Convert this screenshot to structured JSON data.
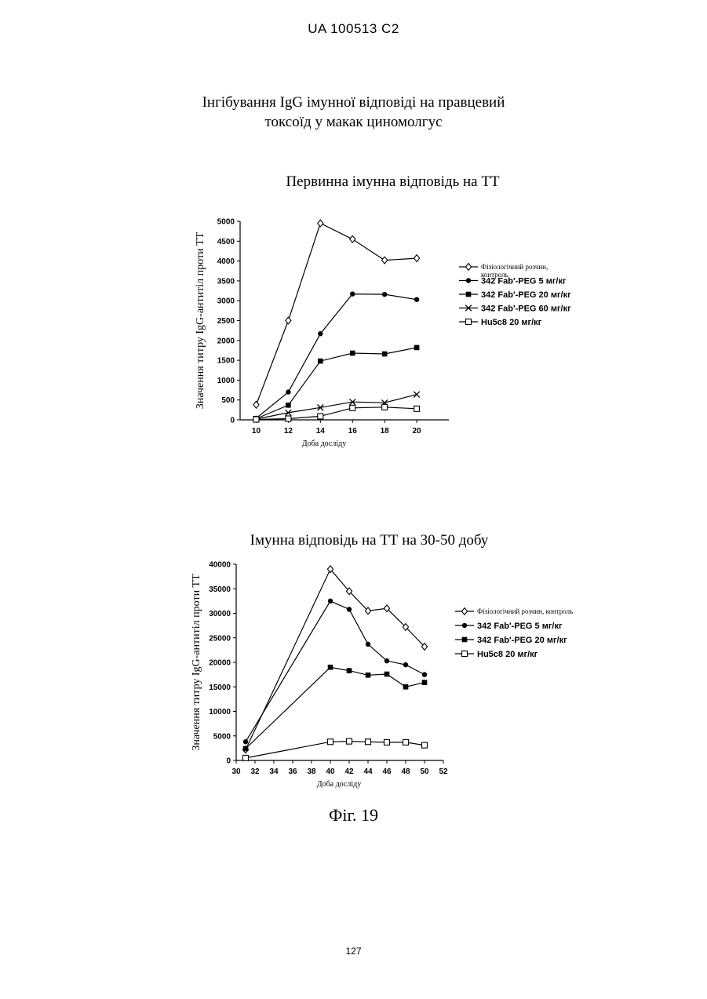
{
  "header": "UA   100513   C2",
  "title_line1": "Інгібування IgG імунної відповіді на правцевий",
  "title_line2": "токсоїд у макак циномолгус",
  "page_number": "127",
  "figure_label": "Фіг. 19",
  "chart_data": [
    {
      "type": "line",
      "title": "Первинна імунна відповідь на ТТ",
      "xlabel": "Доба досліду",
      "ylabel": "Значення титру IgG-антитіл проти ТТ",
      "x_ticks": [
        10,
        12,
        14,
        16,
        18,
        20
      ],
      "y_ticks": [
        0,
        500,
        1000,
        1500,
        2000,
        2500,
        3000,
        3500,
        4000,
        4500,
        5000
      ],
      "xlim": [
        9,
        22
      ],
      "ylim": [
        0,
        5000
      ],
      "grid": false,
      "legend_position": "right",
      "series": [
        {
          "name": "Фізіологічний розчин, контроль",
          "marker": "diamond-open",
          "x": [
            10,
            12,
            14,
            16,
            18,
            20
          ],
          "y": [
            380,
            2500,
            4950,
            4550,
            4020,
            4070
          ]
        },
        {
          "name": "342 Fab'-PEG 5 мг/кг",
          "marker": "circle-filled",
          "x": [
            10,
            12,
            14,
            16,
            18,
            20
          ],
          "y": [
            40,
            700,
            2170,
            3170,
            3160,
            3030
          ]
        },
        {
          "name": "342 Fab'-PEG 20 мг/кг",
          "marker": "square-filled",
          "x": [
            10,
            12,
            14,
            16,
            18,
            20
          ],
          "y": [
            30,
            370,
            1480,
            1680,
            1660,
            1820
          ]
        },
        {
          "name": "342 Fab'-PEG 60 мг/кг",
          "marker": "x",
          "x": [
            10,
            12,
            14,
            16,
            18,
            20
          ],
          "y": [
            20,
            180,
            310,
            450,
            430,
            640
          ]
        },
        {
          "name": "Hu5c8 20 мг/кг",
          "marker": "square-open",
          "x": [
            10,
            12,
            14,
            16,
            18,
            20
          ],
          "y": [
            10,
            30,
            90,
            300,
            320,
            280
          ]
        }
      ]
    },
    {
      "type": "line",
      "title": "Імунна відповідь на ТТ на 30-50 добу",
      "xlabel": "Доба досліду",
      "ylabel": "Значення титру IgG-антитіл проти ТТ",
      "x_ticks": [
        30,
        32,
        34,
        36,
        38,
        40,
        42,
        44,
        46,
        48,
        50,
        52
      ],
      "y_ticks": [
        0,
        5000,
        10000,
        15000,
        20000,
        25000,
        30000,
        35000,
        40000
      ],
      "xlim": [
        30,
        52
      ],
      "ylim": [
        0,
        40000
      ],
      "grid": false,
      "legend_position": "right",
      "series": [
        {
          "name": "Фізіологічний розчин, контроль",
          "marker": "diamond-open",
          "x": [
            31,
            40,
            42,
            44,
            46,
            48,
            50
          ],
          "y": [
            2200,
            39000,
            34500,
            30500,
            31000,
            27200,
            23200
          ]
        },
        {
          "name": "342 Fab'-PEG 5 мг/кг",
          "marker": "circle-filled",
          "x": [
            31,
            40,
            42,
            44,
            46,
            48,
            50
          ],
          "y": [
            3800,
            32500,
            30800,
            23700,
            20300,
            19500,
            17500
          ]
        },
        {
          "name": "342 Fab'-PEG 20 мг/кг",
          "marker": "square-filled",
          "x": [
            31,
            40,
            42,
            44,
            46,
            48,
            50
          ],
          "y": [
            2400,
            19000,
            18300,
            17400,
            17600,
            15000,
            15900
          ]
        },
        {
          "name": "Hu5c8 20 мг/кг",
          "marker": "square-open",
          "x": [
            31,
            40,
            42,
            44,
            46,
            48,
            50
          ],
          "y": [
            500,
            3800,
            3900,
            3800,
            3700,
            3700,
            3100
          ]
        }
      ]
    }
  ]
}
